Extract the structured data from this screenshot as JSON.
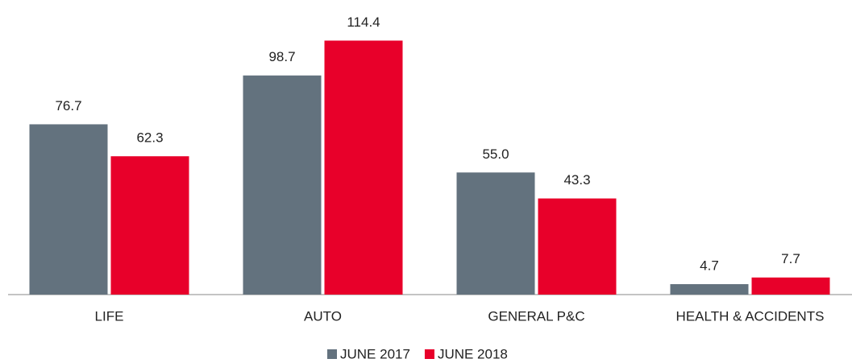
{
  "chart_data": {
    "type": "bar",
    "categories": [
      "LIFE",
      "AUTO",
      "GENERAL P&C",
      "HEALTH & ACCIDENTS"
    ],
    "series": [
      {
        "name": "JUNE 2017",
        "color": "#63727e",
        "values": [
          76.7,
          98.7,
          55.0,
          4.7
        ],
        "value_labels": [
          "76.7",
          "98.7",
          "55.0",
          "4.7"
        ]
      },
      {
        "name": "JUNE 2018",
        "color": "#e8002a",
        "values": [
          62.3,
          114.4,
          43.3,
          7.7
        ],
        "value_labels": [
          "62.3",
          "114.4",
          "43.3",
          "7.7"
        ]
      }
    ],
    "ylim": [
      0,
      120
    ],
    "legend": "bottom"
  }
}
